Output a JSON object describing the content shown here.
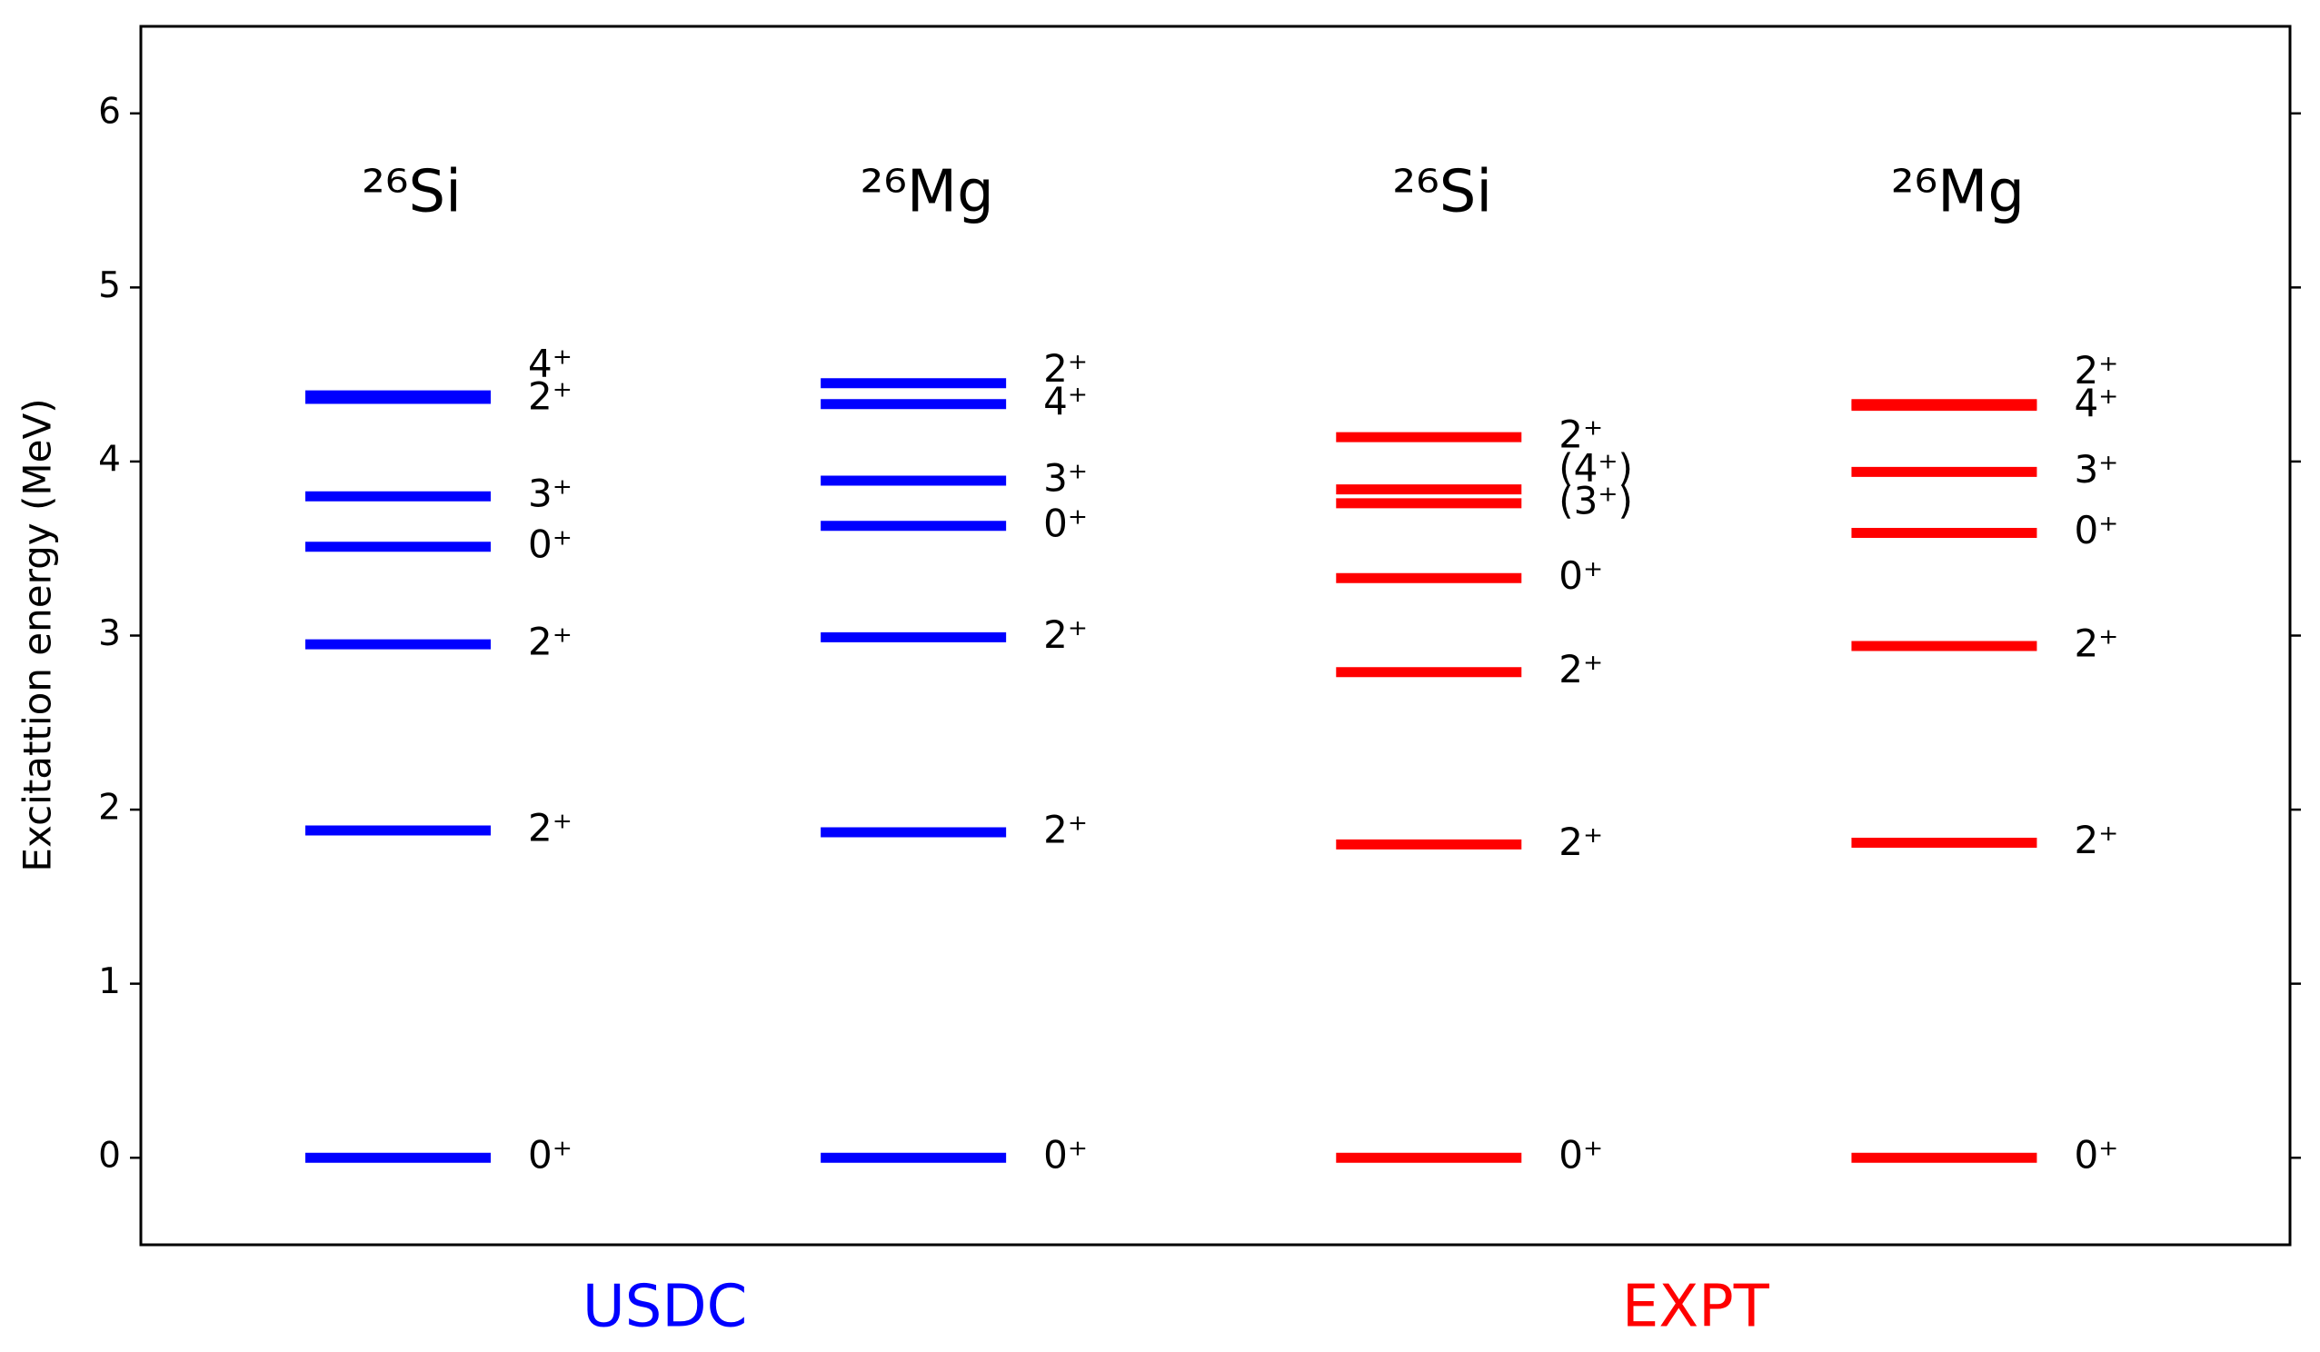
{
  "chart_data": {
    "type": "level-scheme",
    "ylabel": "Excitattion energy (MeV)",
    "ylim": [
      -0.5,
      6.5
    ],
    "yticks": [
      0,
      1,
      2,
      3,
      4,
      5,
      6
    ],
    "groups": [
      {
        "label": "USDC",
        "color": "#0000ff",
        "nuclei": [
          {
            "name": "²⁶Si",
            "levels": [
              0,
              1.88,
              2.95,
              3.51,
              3.8,
              4.36,
              4.38
            ],
            "level_labels": [
              "0⁺",
              "2⁺",
              "2⁺",
              "0⁺",
              "3⁺",
              "2⁺",
              "4⁺"
            ]
          },
          {
            "name": "²⁶Mg",
            "levels": [
              0,
              1.87,
              2.99,
              3.63,
              3.89,
              4.33,
              4.45
            ],
            "level_labels": [
              "0⁺",
              "2⁺",
              "2⁺",
              "0⁺",
              "3⁺",
              "4⁺",
              "2⁺"
            ]
          }
        ]
      },
      {
        "label": "EXPT",
        "color": "#ff0000",
        "nuclei": [
          {
            "name": "²⁶Si",
            "levels": [
              0,
              1.8,
              2.79,
              3.33,
              3.76,
              3.84,
              4.14
            ],
            "level_labels": [
              "0⁺",
              "2⁺",
              "2⁺",
              "0⁺",
              "(3⁺)",
              "(4⁺)",
              "2⁺"
            ]
          },
          {
            "name": "²⁶Mg",
            "levels": [
              0,
              1.81,
              2.94,
              3.59,
              3.94,
              4.32,
              4.33
            ],
            "level_labels": [
              "0⁺",
              "2⁺",
              "2⁺",
              "0⁺",
              "3⁺",
              "4⁺",
              "2⁺"
            ]
          }
        ]
      }
    ]
  }
}
